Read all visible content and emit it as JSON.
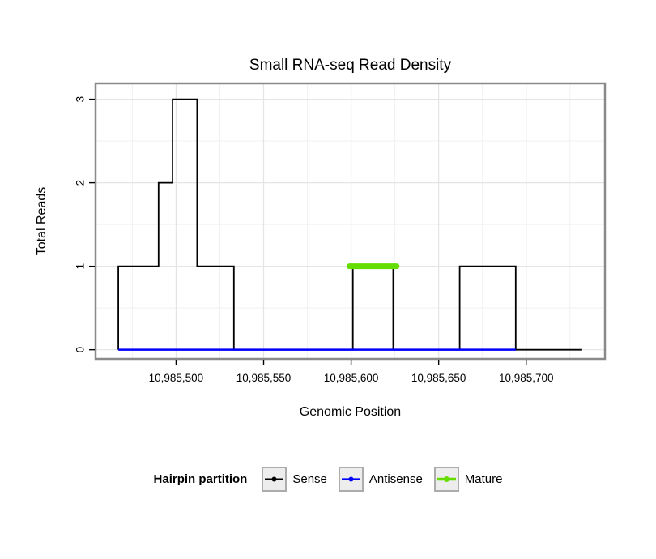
{
  "page": {
    "background": "#ffffff"
  },
  "chart_data": {
    "type": "step-line",
    "title": "Small RNA-seq Read Density",
    "xlabel": "Genomic Position",
    "ylabel": "Total Reads",
    "grid": true,
    "legend_position": "bottom",
    "x_axis": {
      "lim": [
        10985454,
        10985745
      ],
      "ticks": [
        {
          "v": 10985500,
          "label": "10,985,500"
        },
        {
          "v": 10985550,
          "label": "10,985,550"
        },
        {
          "v": 10985600,
          "label": "10,985,600"
        },
        {
          "v": 10985650,
          "label": "10,985,650"
        },
        {
          "v": 10985700,
          "label": "10,985,700"
        }
      ],
      "minor": [
        10985475,
        10985525,
        10985575,
        10985625,
        10985675,
        10985725
      ]
    },
    "y_axis": {
      "lim": [
        -0.11,
        3.19
      ],
      "ticks": [
        {
          "v": 0,
          "label": "0"
        },
        {
          "v": 1,
          "label": "1"
        },
        {
          "v": 2,
          "label": "2"
        },
        {
          "v": 3,
          "label": "3"
        }
      ],
      "minor": [
        0.5,
        1.5,
        2.5
      ]
    },
    "series": [
      {
        "name": "Sense",
        "color": "#000000",
        "style": "step",
        "line_width": 1.8,
        "segments": [
          [
            10985467,
            10985490,
            1
          ],
          [
            10985490,
            10985498,
            2
          ],
          [
            10985498,
            10985512,
            3
          ],
          [
            10985512,
            10985533,
            1
          ],
          [
            10985533,
            10985601,
            0
          ],
          [
            10985601,
            10985624,
            1
          ],
          [
            10985624,
            10985662,
            0
          ],
          [
            10985662,
            10985694,
            1
          ],
          [
            10985694,
            10985732,
            0
          ]
        ]
      },
      {
        "name": "Antisense",
        "color": "#0000ff",
        "style": "flat",
        "line_width": 2.5,
        "y": 0,
        "xstart": 10985467,
        "xend": 10985694
      },
      {
        "name": "Mature",
        "color": "#66DD00",
        "style": "flat",
        "line_width": 7,
        "y": 1,
        "xstart": 10985599,
        "xend": 10985626
      }
    ],
    "legend": {
      "title": "Hairpin partition",
      "entries": [
        {
          "label": "Sense",
          "color": "#000000",
          "key_lw": 2,
          "dot_r": 3
        },
        {
          "label": "Antisense",
          "color": "#0000ff",
          "key_lw": 2.2,
          "dot_r": 3
        },
        {
          "label": "Mature",
          "color": "#66DD00",
          "key_lw": 3.5,
          "dot_r": 3.5
        }
      ]
    },
    "colors": {
      "panel_bg": "#ffffff",
      "panel_border": "#8a8a8a",
      "grid_major": "#e4e4e4",
      "grid_minor": "#f1f1f1",
      "tick": "#000000",
      "text": "#000000"
    }
  }
}
